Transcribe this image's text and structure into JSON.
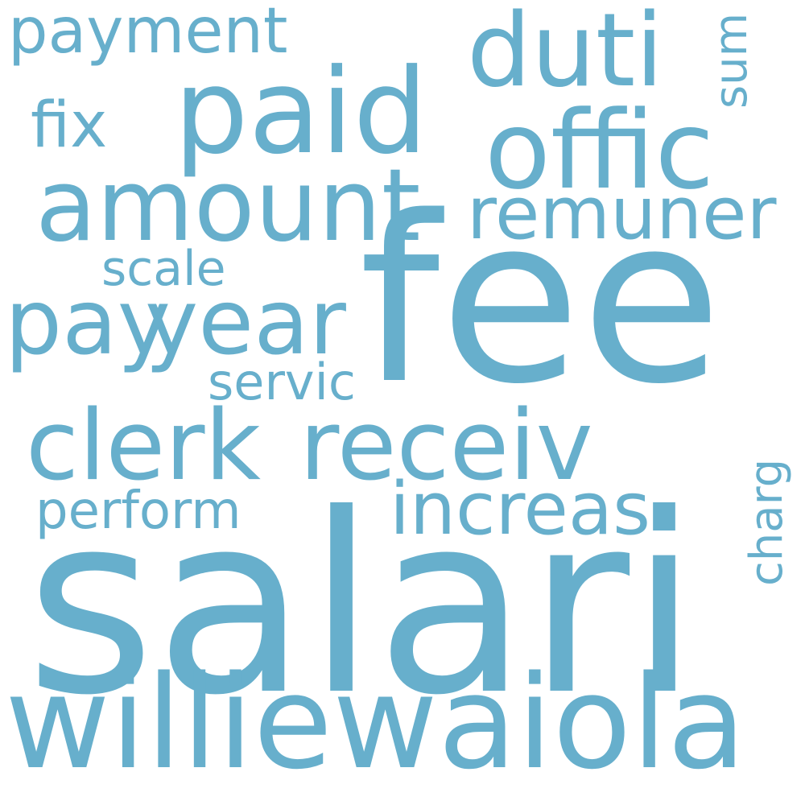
{
  "word_cloud": {
    "color": "#67afcc",
    "background": "#ffffff",
    "words": {
      "salari": "salari",
      "fee": "fee",
      "williewaiola": "williewaiola",
      "paid": "paid",
      "offic": "offic",
      "duti": "duti",
      "amount": "amount",
      "clerk": "clerk",
      "receiv": "receiv",
      "year": "year",
      "pay": "pay",
      "remuner": "remuner",
      "increas": "increas",
      "payment": "payment",
      "fix": "fix",
      "perform": "perform",
      "servic": "servic",
      "scale": "scale",
      "sum": "sum",
      "charg": "charg"
    }
  }
}
